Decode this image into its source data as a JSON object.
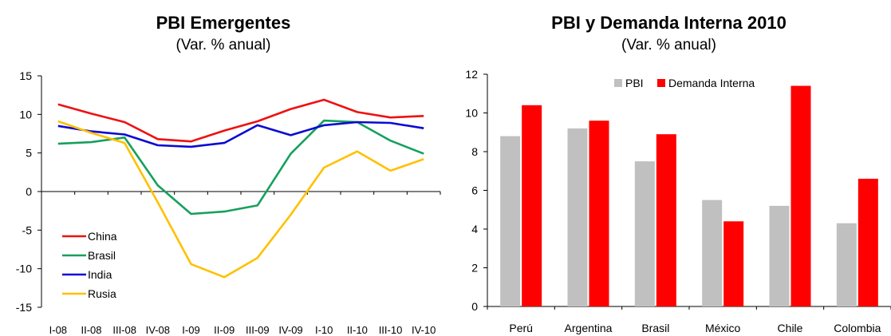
{
  "chart_data": [
    {
      "type": "line",
      "title": "PBI Emergentes",
      "subtitle": "(Var. % anual)",
      "categories": [
        "I-08",
        "II-08",
        "III-08",
        "IV-08",
        "I-09",
        "II-09",
        "III-09",
        "IV-09",
        "I-10",
        "II-10",
        "III-10",
        "IV-10"
      ],
      "yticks": [
        "15",
        "10",
        "5",
        "0",
        "-5",
        "-10",
        "-15"
      ],
      "ylim": [
        -15,
        15
      ],
      "grid": false,
      "legend_position": "bottom-left",
      "series": [
        {
          "name": "China",
          "color": "#ee1111",
          "values": [
            11.3,
            10.1,
            9.0,
            6.8,
            6.5,
            7.9,
            9.1,
            10.7,
            11.9,
            10.3,
            9.6,
            9.8
          ]
        },
        {
          "name": "Brasil",
          "color": "#16a05c",
          "values": [
            6.2,
            6.4,
            7.0,
            0.8,
            -2.9,
            -2.6,
            -1.8,
            4.9,
            9.2,
            9.0,
            6.6,
            4.9
          ]
        },
        {
          "name": "India",
          "color": "#0a0ad2",
          "values": [
            8.5,
            7.8,
            7.4,
            6.0,
            5.8,
            6.3,
            8.6,
            7.3,
            8.6,
            9.0,
            8.9,
            8.2
          ]
        },
        {
          "name": "Rusia",
          "color": "#ffc000",
          "values": [
            9.1,
            7.6,
            6.3,
            -1.4,
            -9.4,
            -11.1,
            -8.6,
            -3.0,
            3.1,
            5.2,
            2.7,
            4.2
          ]
        }
      ]
    },
    {
      "type": "bar",
      "title": "PBI y Demanda Interna 2010",
      "subtitle": "(Var. % anual)",
      "categories": [
        "Perú",
        "Argentina",
        "Brasil",
        "México",
        "Chile",
        "Colombia"
      ],
      "yticks": [
        "12",
        "10",
        "8",
        "6",
        "4",
        "2",
        "0"
      ],
      "ylim": [
        0,
        12
      ],
      "grid": false,
      "legend_position": "top-center",
      "series": [
        {
          "name": "PBI",
          "color": "#c0c0c0",
          "values": [
            8.8,
            9.2,
            7.5,
            5.5,
            5.2,
            4.3
          ]
        },
        {
          "name": "Demanda Interna",
          "color": "#ff0000",
          "values": [
            10.4,
            9.6,
            8.9,
            4.4,
            11.4,
            6.6
          ]
        }
      ]
    }
  ]
}
